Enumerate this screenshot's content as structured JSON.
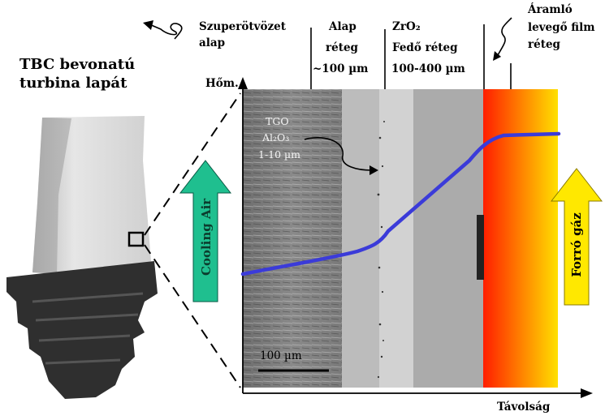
{
  "title": {
    "line1": "TBC bevonatú",
    "line2": "turbina lapát"
  },
  "layers": {
    "superalloy": {
      "line1": "Szuperötvözet",
      "line2": "alap"
    },
    "bond": {
      "line1": "Alap",
      "line2": "réteg",
      "line3": "~100 µm"
    },
    "topcoat": {
      "line1": "ZrO₂",
      "line2": "Fedő réteg",
      "line3": "100-400 µm"
    },
    "airfilm": {
      "line1": "Áramló",
      "line2": "levegő film",
      "line3": "réteg"
    }
  },
  "tgo": {
    "line1": "TGO",
    "line2": "Al₂O₃",
    "line3": "1-10 µm"
  },
  "axes": {
    "y_label": "Hőm.",
    "x_label": "Távolság"
  },
  "scale_bar": "100 µm",
  "arrows": {
    "cooling": {
      "label": "Cooling Air",
      "color": "#1fbf8f"
    },
    "hot_gas": {
      "label": "Forró gáz",
      "color": "#ffe800"
    }
  },
  "colors": {
    "temperature_line": "#3b3bd9",
    "hot_gradient_start": "#ff1e00",
    "hot_gradient_end": "#ffe000"
  }
}
